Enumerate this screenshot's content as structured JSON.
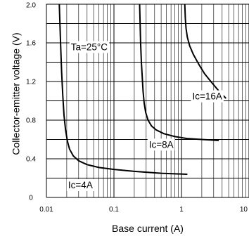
{
  "chart_data": {
    "type": "line",
    "title": "",
    "xlabel": "Base current  (A)",
    "ylabel": "Collector-emitter voltage  (V)",
    "x_scale": "log",
    "xlim": [
      0.01,
      10
    ],
    "ylim": [
      0,
      2.0
    ],
    "grid": true,
    "x_ticks": [
      {
        "value": 0.01,
        "label": "0.01"
      },
      {
        "value": 0.1,
        "label": "0.1"
      },
      {
        "value": 1,
        "label": "1"
      },
      {
        "value": 10,
        "label": "10"
      }
    ],
    "y_ticks": [
      {
        "value": 0,
        "label": "0"
      },
      {
        "value": 0.4,
        "label": "0.4"
      },
      {
        "value": 0.8,
        "label": "0.8"
      },
      {
        "value": 1.2,
        "label": "1.2"
      },
      {
        "value": 1.6,
        "label": "1.6"
      },
      {
        "value": 2.0,
        "label": "2.0"
      }
    ],
    "annotations": [
      {
        "text": "Ta=25°C",
        "x": 0.023,
        "y": 1.55
      },
      {
        "text": "Ic=16A",
        "x": 1.45,
        "y": 1.04
      },
      {
        "text": "Ic=8A",
        "x": 0.33,
        "y": 0.54
      },
      {
        "text": "Ic=4A",
        "x": 0.021,
        "y": 0.12
      }
    ],
    "series": [
      {
        "label": "Ic=4A",
        "x": [
          0.0155,
          0.0162,
          0.0168,
          0.0175,
          0.0182,
          0.0192,
          0.0205,
          0.022,
          0.025,
          0.03,
          0.04,
          0.06,
          0.1,
          0.2,
          0.5,
          1.2
        ],
        "y": [
          2.0,
          1.6,
          1.3,
          1.05,
          0.85,
          0.7,
          0.58,
          0.5,
          0.43,
          0.38,
          0.34,
          0.31,
          0.29,
          0.27,
          0.25,
          0.24
        ]
      },
      {
        "label": "Ic=8A",
        "x": [
          0.24,
          0.248,
          0.255,
          0.262,
          0.27,
          0.28,
          0.295,
          0.32,
          0.36,
          0.42,
          0.55,
          0.8,
          1.2,
          2.0,
          3.5
        ],
        "y": [
          2.0,
          1.6,
          1.4,
          1.25,
          1.1,
          0.98,
          0.88,
          0.8,
          0.74,
          0.7,
          0.66,
          0.63,
          0.61,
          0.6,
          0.59
        ]
      },
      {
        "label": "Ic=16A",
        "x": [
          1.12,
          1.14,
          1.17,
          1.22,
          1.32,
          1.5,
          1.8,
          2.2,
          2.8,
          3.6,
          4.5
        ],
        "y": [
          2.0,
          1.85,
          1.75,
          1.66,
          1.57,
          1.48,
          1.38,
          1.28,
          1.19,
          1.1,
          1.03
        ]
      }
    ]
  }
}
